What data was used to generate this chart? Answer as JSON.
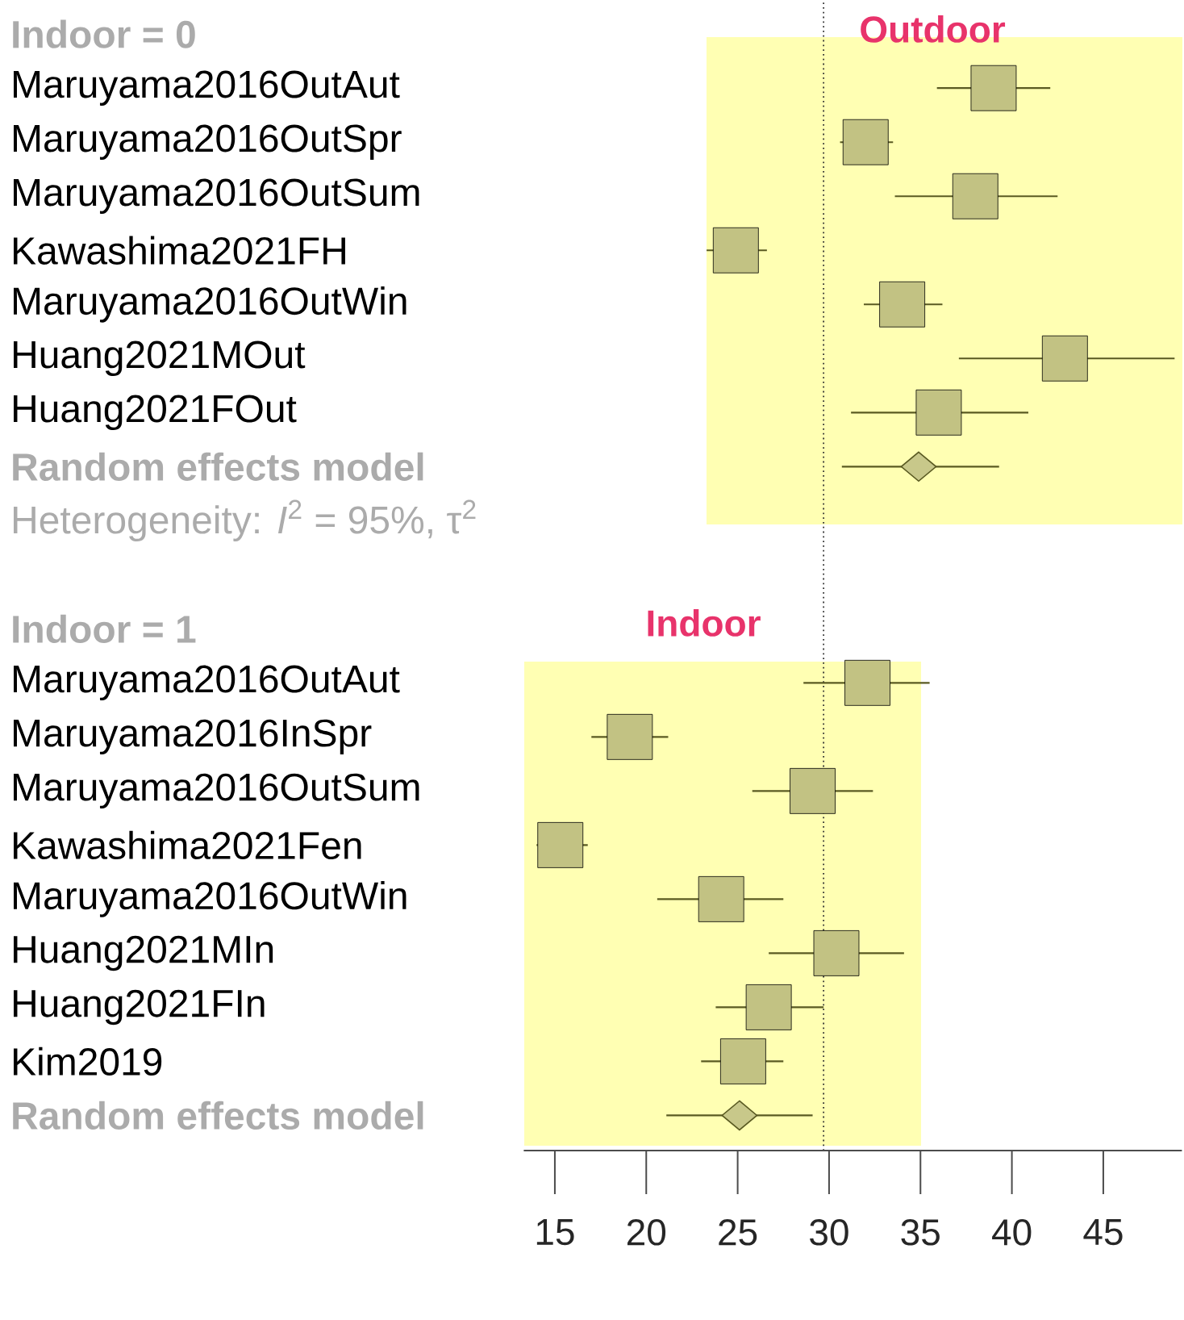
{
  "chart_data": {
    "type": "scatter",
    "orientation": "horizontal",
    "categories": [
      "Indoor = 0",
      "Maruyama2016OutAut",
      "Maruyama2016OutSpr",
      "Maruyama2016OutSum",
      "Kawashima2021FH",
      "Maruyama2016OutWin",
      "Huang2021MOut",
      "Huang2021FOut",
      "Random effects model",
      "Heterogeneity: *I*$^{2}$ = 95%, τ$^{2}$",
      null,
      "Indoor = 1",
      "Maruyama2016OutAut",
      "Maruyama2016InSpr",
      "Maruyama2016OutSum",
      "Kawashima2021Fen",
      "Maruyama2016OutWin",
      "Huang2021MIn",
      "Huang2021FIn",
      "Kim2019",
      "Random effects model"
    ],
    "series": [
      {
        "color": "#c2c283",
        "marker": "square",
        "values": [
          null,
          39.0,
          32.0,
          38.0,
          24.9,
          34.0,
          42.9,
          36.0,
          null,
          null,
          null,
          null,
          32.1,
          19.1,
          29.1,
          15.3,
          24.1,
          30.4,
          26.7,
          25.3,
          null
        ],
        "errors": [
          null,
          [
            35.9,
            42.1
          ],
          [
            30.6,
            33.5
          ],
          [
            33.6,
            42.5
          ],
          [
            23.3,
            26.6
          ],
          [
            31.9,
            36.2
          ],
          [
            37.1,
            48.9
          ],
          [
            31.2,
            40.9
          ],
          null,
          null,
          null,
          null,
          [
            28.6,
            35.5
          ],
          [
            17.0,
            21.2
          ],
          [
            25.8,
            32.4
          ],
          [
            14.0,
            16.8
          ],
          [
            20.6,
            27.5
          ],
          [
            26.7,
            34.1
          ],
          [
            23.8,
            29.7
          ],
          [
            23.0,
            27.5
          ],
          null
        ]
      },
      {
        "color": "#c8c88a",
        "marker": "diamond",
        "values": [
          null,
          null,
          null,
          null,
          null,
          null,
          null,
          null,
          34.9,
          null,
          null,
          null,
          null,
          null,
          null,
          null,
          null,
          null,
          null,
          null,
          25.1
        ],
        "errors": [
          null,
          null,
          null,
          null,
          null,
          null,
          null,
          null,
          [
            30.7,
            39.3
          ],
          null,
          null,
          null,
          null,
          null,
          null,
          null,
          null,
          null,
          null,
          null,
          [
            21.1,
            29.1
          ]
        ]
      }
    ],
    "xlim": [
      13.3,
      49.3
    ],
    "xticks": [
      15,
      20,
      25,
      30,
      35,
      40,
      45
    ],
    "ref_lines": [
      {
        "axis": "x",
        "value": 29.7,
        "line_style": "dotted"
      }
    ],
    "annotations": [
      "Outdoor",
      "Indoor"
    ]
  }
}
